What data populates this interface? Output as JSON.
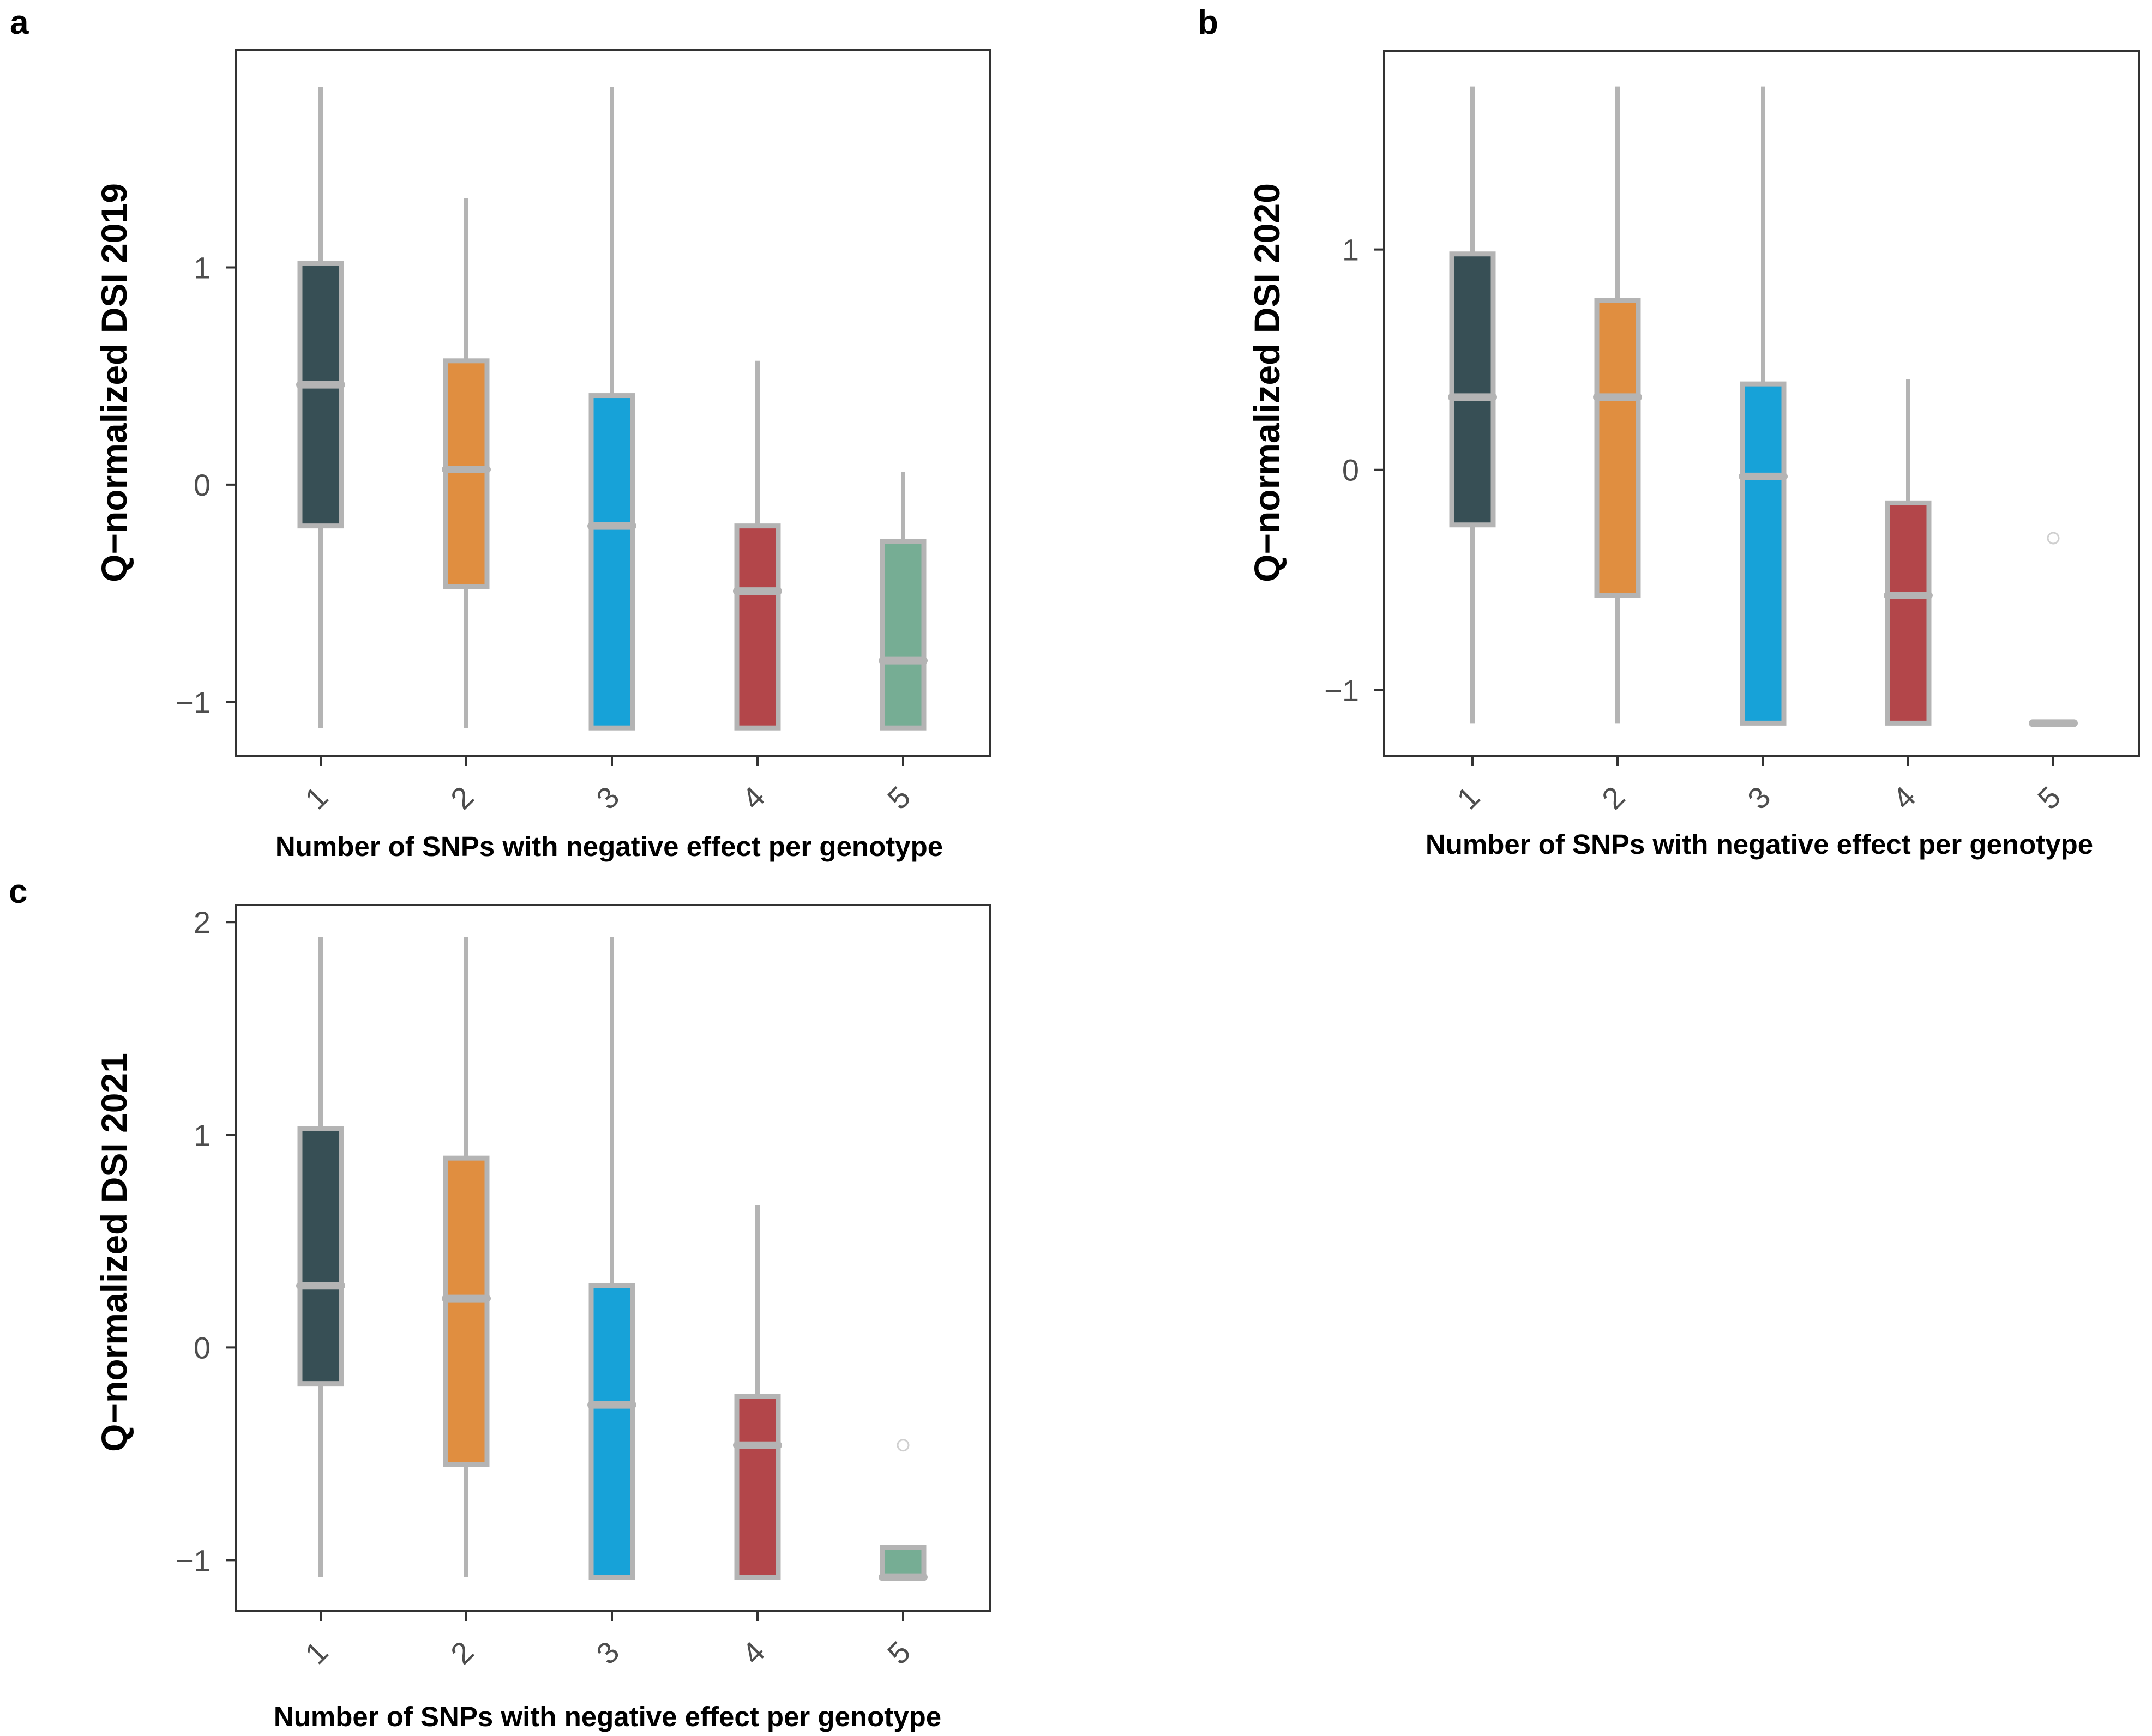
{
  "colors": {
    "groups": [
      "#374f55",
      "#e08e40",
      "#17a2d8",
      "#b3464a",
      "#76ad94"
    ],
    "box_outline": "#b4b4b4",
    "axis": "#333333",
    "tick_text": "#4d4d4d"
  },
  "chart_data": [
    {
      "panel": "a",
      "type": "boxplot",
      "title": "",
      "xlabel": "Number of SNPs with negative effect per genotype",
      "ylabel": "Q−normalized DSI 2019",
      "ylim": [
        -1.25,
        2.0
      ],
      "yticks": [
        -1,
        0,
        1
      ],
      "ytick_labels": [
        "−1",
        "0",
        "1"
      ],
      "categories": [
        "1",
        "2",
        "3",
        "4",
        "5"
      ],
      "boxes": [
        {
          "category": "1",
          "whisker_low": -1.12,
          "q1": -0.19,
          "median": 0.46,
          "q3": 1.02,
          "whisker_high": 1.83,
          "outliers": []
        },
        {
          "category": "2",
          "whisker_low": -1.12,
          "q1": -0.47,
          "median": 0.07,
          "q3": 0.57,
          "whisker_high": 1.32,
          "outliers": []
        },
        {
          "category": "3",
          "whisker_low": -1.12,
          "q1": -1.12,
          "median": -0.19,
          "q3": 0.41,
          "whisker_high": 1.83,
          "outliers": []
        },
        {
          "category": "4",
          "whisker_low": -1.12,
          "q1": -1.12,
          "median": -0.49,
          "q3": -0.19,
          "whisker_high": 0.57,
          "outliers": []
        },
        {
          "category": "5",
          "whisker_low": -1.12,
          "q1": -1.12,
          "median": -0.81,
          "q3": -0.26,
          "whisker_high": 0.06,
          "outliers": []
        }
      ]
    },
    {
      "panel": "b",
      "type": "boxplot",
      "title": "",
      "xlabel": "Number of SNPs with negative effect per genotype",
      "ylabel": "Q−normalized DSI 2020",
      "ylim": [
        -1.3,
        1.9
      ],
      "yticks": [
        -1,
        0,
        1
      ],
      "ytick_labels": [
        "−1",
        "0",
        "1"
      ],
      "categories": [
        "1",
        "2",
        "3",
        "4",
        "5"
      ],
      "boxes": [
        {
          "category": "1",
          "whisker_low": -1.15,
          "q1": -0.25,
          "median": 0.33,
          "q3": 0.98,
          "whisker_high": 1.74,
          "outliers": []
        },
        {
          "category": "2",
          "whisker_low": -1.15,
          "q1": -0.57,
          "median": 0.33,
          "q3": 0.77,
          "whisker_high": 1.74,
          "outliers": []
        },
        {
          "category": "3",
          "whisker_low": -1.15,
          "q1": -1.15,
          "median": -0.03,
          "q3": 0.39,
          "whisker_high": 1.74,
          "outliers": []
        },
        {
          "category": "4",
          "whisker_low": -1.15,
          "q1": -1.15,
          "median": -0.57,
          "q3": -0.15,
          "whisker_high": 0.41,
          "outliers": []
        },
        {
          "category": "5",
          "whisker_low": -1.15,
          "q1": -1.15,
          "median": -1.15,
          "q3": -1.15,
          "whisker_high": -1.15,
          "outliers": [
            -0.31
          ]
        }
      ]
    },
    {
      "panel": "c",
      "type": "boxplot",
      "title": "",
      "xlabel": "Number of SNPs with negative effect per genotype",
      "ylabel": "Q−normalized DSI 2021",
      "ylim": [
        -1.24,
        2.08
      ],
      "yticks": [
        -1,
        0,
        1,
        2
      ],
      "ytick_labels": [
        "−1",
        "0",
        "1",
        "2"
      ],
      "categories": [
        "1",
        "2",
        "3",
        "4",
        "5"
      ],
      "boxes": [
        {
          "category": "1",
          "whisker_low": -1.08,
          "q1": -0.17,
          "median": 0.29,
          "q3": 1.03,
          "whisker_high": 1.93,
          "outliers": []
        },
        {
          "category": "2",
          "whisker_low": -1.08,
          "q1": -0.55,
          "median": 0.23,
          "q3": 0.89,
          "whisker_high": 1.93,
          "outliers": []
        },
        {
          "category": "3",
          "whisker_low": -1.08,
          "q1": -1.08,
          "median": -0.27,
          "q3": 0.29,
          "whisker_high": 1.93,
          "outliers": []
        },
        {
          "category": "4",
          "whisker_low": -1.08,
          "q1": -1.08,
          "median": -0.46,
          "q3": -0.23,
          "whisker_high": 0.67,
          "outliers": []
        },
        {
          "category": "5",
          "whisker_low": -1.08,
          "q1": -1.08,
          "median": -1.08,
          "q3": -0.94,
          "whisker_high": -0.94,
          "outliers": [
            -0.46
          ]
        }
      ]
    }
  ]
}
